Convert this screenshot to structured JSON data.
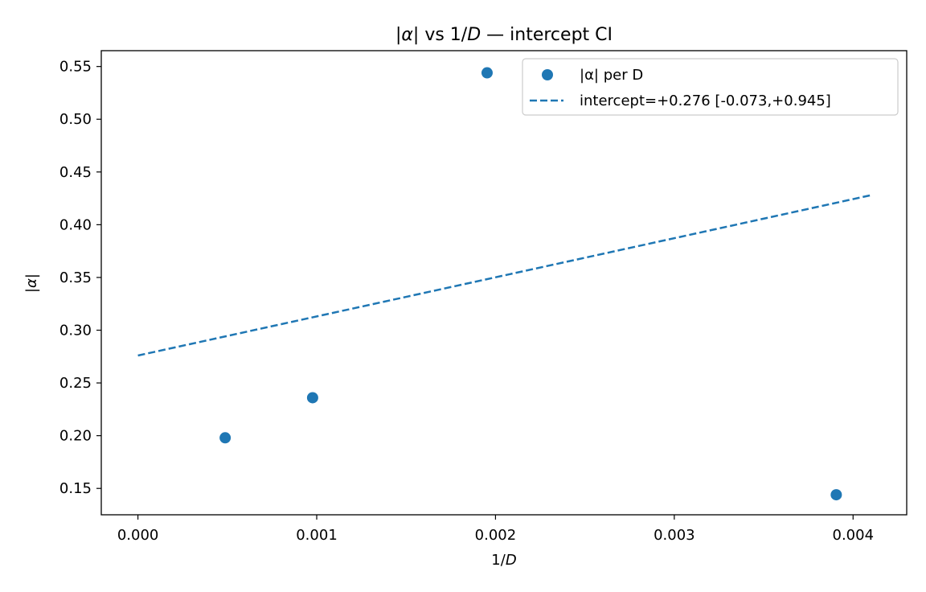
{
  "chart_data": {
    "type": "scatter",
    "title": "|α| vs 1/D — intercept CI",
    "xlabel": "1/D",
    "ylabel": "|α|",
    "xlim": [
      -0.000205,
      0.0043
    ],
    "ylim": [
      0.125,
      0.565
    ],
    "x_ticks": [
      0.0,
      0.001,
      0.002,
      0.003,
      0.004
    ],
    "x_tick_labels": [
      "0.000",
      "0.001",
      "0.002",
      "0.003",
      "0.004"
    ],
    "y_ticks": [
      0.15,
      0.2,
      0.25,
      0.3,
      0.35,
      0.4,
      0.45,
      0.5,
      0.55
    ],
    "y_tick_labels": [
      "0.15",
      "0.20",
      "0.25",
      "0.30",
      "0.35",
      "0.40",
      "0.45",
      "0.50",
      "0.55"
    ],
    "grid": false,
    "legend_position": "top-right",
    "series": [
      {
        "name": "|α| per D",
        "kind": "scatter",
        "color": "#1f77b4",
        "points": [
          {
            "x": 0.000488,
            "y": 0.198
          },
          {
            "x": 0.000977,
            "y": 0.236
          },
          {
            "x": 0.001953,
            "y": 0.544
          },
          {
            "x": 0.003906,
            "y": 0.144
          }
        ]
      },
      {
        "name": "intercept=+0.276 [-0.073,+0.945]",
        "kind": "line",
        "style": "dashed",
        "color": "#1f77b4",
        "points": [
          {
            "x": 0.0,
            "y": 0.276
          },
          {
            "x": 0.0041,
            "y": 0.428
          }
        ]
      }
    ]
  }
}
